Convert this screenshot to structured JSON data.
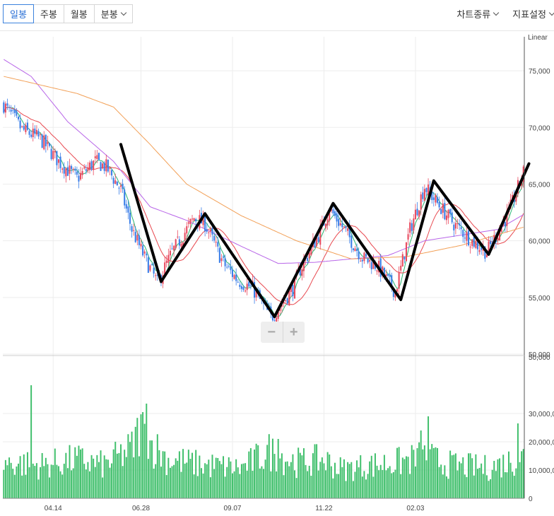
{
  "toolbar": {
    "tabs": [
      {
        "label": "일봉",
        "active": true
      },
      {
        "label": "주봉"
      },
      {
        "label": "월봉"
      },
      {
        "label": "분봉"
      }
    ],
    "chart_type_label": "차트종류",
    "indicator_label": "지표설정"
  },
  "zoom": {
    "minus": "−",
    "plus": "+"
  },
  "colors": {
    "up": "#e84a5f",
    "down": "#3a7ee8",
    "volume": "#3fbf6b",
    "ma5": "#2bb573",
    "ma20": "#e8484f",
    "ma60": "#b865e8",
    "ma120": "#f2a057",
    "zigzag": "#000000",
    "grid": "#ededed"
  },
  "chart_data": {
    "type": "candlestick",
    "scale_label": "Linear",
    "price_axis": {
      "min": 50000,
      "max": 78000,
      "ticks": [
        "75,000",
        "70,000",
        "65,000",
        "60,000",
        "55,000",
        "50,000"
      ]
    },
    "volume_axis": {
      "min": 0,
      "max": 50000,
      "ticks": [
        "50,000",
        "30,000,0",
        "20,000,0",
        "10,000,0",
        "0"
      ]
    },
    "x_ticks": [
      "04.14",
      "06.28",
      "09.07",
      "11.22",
      "02.03"
    ],
    "x_tick_positions": [
      27,
      75,
      125,
      175,
      225
    ],
    "bar_count": 285,
    "price_path": [
      [
        0,
        72000
      ],
      [
        10,
        69800
      ],
      [
        20,
        69000
      ],
      [
        30,
        67000
      ],
      [
        40,
        65500
      ],
      [
        50,
        67000
      ],
      [
        56,
        66500
      ],
      [
        64,
        64500
      ],
      [
        70,
        61000
      ],
      [
        77,
        58500
      ],
      [
        84,
        56300
      ],
      [
        92,
        59000
      ],
      [
        104,
        62000
      ],
      [
        110,
        61500
      ],
      [
        120,
        58000
      ],
      [
        128,
        56500
      ],
      [
        136,
        55800
      ],
      [
        146,
        53200
      ],
      [
        150,
        54000
      ],
      [
        158,
        55800
      ],
      [
        162,
        57500
      ],
      [
        172,
        60500
      ],
      [
        178,
        62800
      ],
      [
        186,
        61000
      ],
      [
        196,
        58500
      ],
      [
        204,
        57800
      ],
      [
        214,
        55500
      ],
      [
        222,
        61000
      ],
      [
        230,
        64800
      ],
      [
        236,
        63500
      ],
      [
        246,
        61500
      ],
      [
        256,
        60000
      ],
      [
        264,
        59000
      ],
      [
        276,
        62500
      ],
      [
        284,
        66000
      ]
    ],
    "volume_path": [
      [
        0,
        13000
      ],
      [
        20,
        12000
      ],
      [
        40,
        14000
      ],
      [
        55,
        12000
      ],
      [
        70,
        18000
      ],
      [
        75,
        26000
      ],
      [
        80,
        20000
      ],
      [
        90,
        14000
      ],
      [
        110,
        12000
      ],
      [
        130,
        11000
      ],
      [
        145,
        17000
      ],
      [
        160,
        13000
      ],
      [
        175,
        14000
      ],
      [
        185,
        10500
      ],
      [
        200,
        12000
      ],
      [
        215,
        13000
      ],
      [
        230,
        15000
      ],
      [
        245,
        12000
      ],
      [
        265,
        11000
      ],
      [
        284,
        15000
      ]
    ],
    "volume_spikes": [
      [
        15,
        40000
      ],
      [
        78,
        33500
      ],
      [
        76,
        30500
      ],
      [
        232,
        29000
      ],
      [
        281,
        26500
      ],
      [
        150,
        21000
      ],
      [
        228,
        24000
      ]
    ],
    "ma120_path": [
      [
        0,
        74500
      ],
      [
        40,
        73000
      ],
      [
        60,
        71800
      ],
      [
        80,
        68500
      ],
      [
        100,
        65000
      ],
      [
        130,
        62200
      ],
      [
        160,
        60000
      ],
      [
        190,
        58400
      ],
      [
        220,
        58600
      ],
      [
        250,
        59600
      ],
      [
        284,
        61200
      ]
    ],
    "ma60_path": [
      [
        0,
        76000
      ],
      [
        15,
        74500
      ],
      [
        35,
        70500
      ],
      [
        60,
        67000
      ],
      [
        80,
        63000
      ],
      [
        100,
        61800
      ],
      [
        130,
        59500
      ],
      [
        150,
        58000
      ],
      [
        170,
        58100
      ],
      [
        190,
        58400
      ],
      [
        210,
        58700
      ],
      [
        230,
        60000
      ],
      [
        250,
        60500
      ],
      [
        270,
        61000
      ],
      [
        284,
        62300
      ]
    ],
    "zigzag_path": [
      [
        64,
        68500
      ],
      [
        86,
        56400
      ],
      [
        110,
        62400
      ],
      [
        148,
        53300
      ],
      [
        180,
        63300
      ],
      [
        217,
        54800
      ],
      [
        235,
        65300
      ],
      [
        265,
        58800
      ],
      [
        287,
        66800
      ]
    ]
  }
}
